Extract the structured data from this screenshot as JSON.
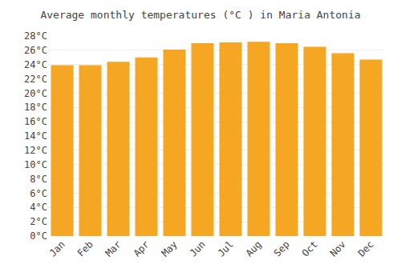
{
  "chart_data": {
    "type": "bar",
    "title": "Average monthly temperatures (°C ) in Maria Antonia",
    "categories": [
      "Jan",
      "Feb",
      "Mar",
      "Apr",
      "May",
      "Jun",
      "Jul",
      "Aug",
      "Sep",
      "Oct",
      "Nov",
      "Dec"
    ],
    "values": [
      23.9,
      23.9,
      24.4,
      25.0,
      26.1,
      27.0,
      27.1,
      27.2,
      27.0,
      26.5,
      25.6,
      24.7
    ],
    "color": "#F5A623",
    "ylim": [
      0,
      28
    ],
    "yticks": [
      {
        "value": 0,
        "label": "0°C"
      },
      {
        "value": 2,
        "label": "2°C"
      },
      {
        "value": 4,
        "label": "4°C"
      },
      {
        "value": 6,
        "label": "6°C"
      },
      {
        "value": 8,
        "label": "8°C"
      },
      {
        "value": 10,
        "label": "10°C"
      },
      {
        "value": 12,
        "label": "12°C"
      },
      {
        "value": 14,
        "label": "14°C"
      },
      {
        "value": 16,
        "label": "16°C"
      },
      {
        "value": 18,
        "label": "18°C"
      },
      {
        "value": 20,
        "label": "20°C"
      },
      {
        "value": 22,
        "label": "22°C"
      },
      {
        "value": 24,
        "label": "24°C"
      },
      {
        "value": 26,
        "label": "26°C"
      },
      {
        "value": 28,
        "label": "28°C"
      }
    ],
    "grid": true
  }
}
